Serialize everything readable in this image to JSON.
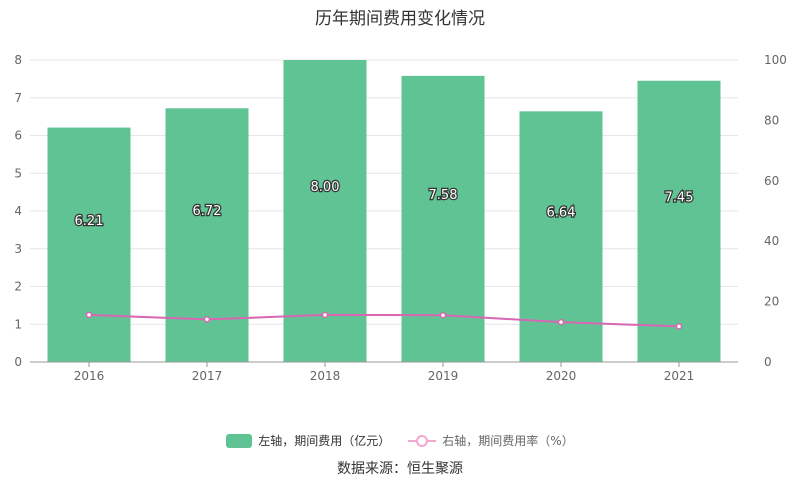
{
  "chart_data": {
    "type": "bar",
    "title": "历年期间费用变化情况",
    "categories": [
      "2016",
      "2017",
      "2018",
      "2019",
      "2020",
      "2021"
    ],
    "series": [
      {
        "name": "左轴，期间费用（亿元）",
        "type": "bar",
        "axis": "left",
        "values": [
          6.21,
          6.72,
          8.0,
          7.58,
          6.64,
          7.45
        ],
        "labels": [
          "6.21",
          "6.72",
          "8.00",
          "7.58",
          "6.64",
          "7.45"
        ],
        "color": "#5fc393"
      },
      {
        "name": "右轴，期间费用率（%）",
        "type": "line",
        "axis": "right",
        "values": [
          15.6,
          14.1,
          15.6,
          15.5,
          13.2,
          11.8
        ],
        "color": "#d966b3"
      }
    ],
    "y_left": {
      "min": 0,
      "max": 8,
      "ticks": [
        "0",
        "1",
        "2",
        "3",
        "4",
        "5",
        "6",
        "7",
        "8"
      ]
    },
    "y_right": {
      "min": 0,
      "max": 100,
      "ticks": [
        "0",
        "20",
        "40",
        "60",
        "80",
        "100"
      ]
    },
    "grid": true,
    "legend_position": "bottom"
  },
  "source": "数据来源：恒生聚源"
}
